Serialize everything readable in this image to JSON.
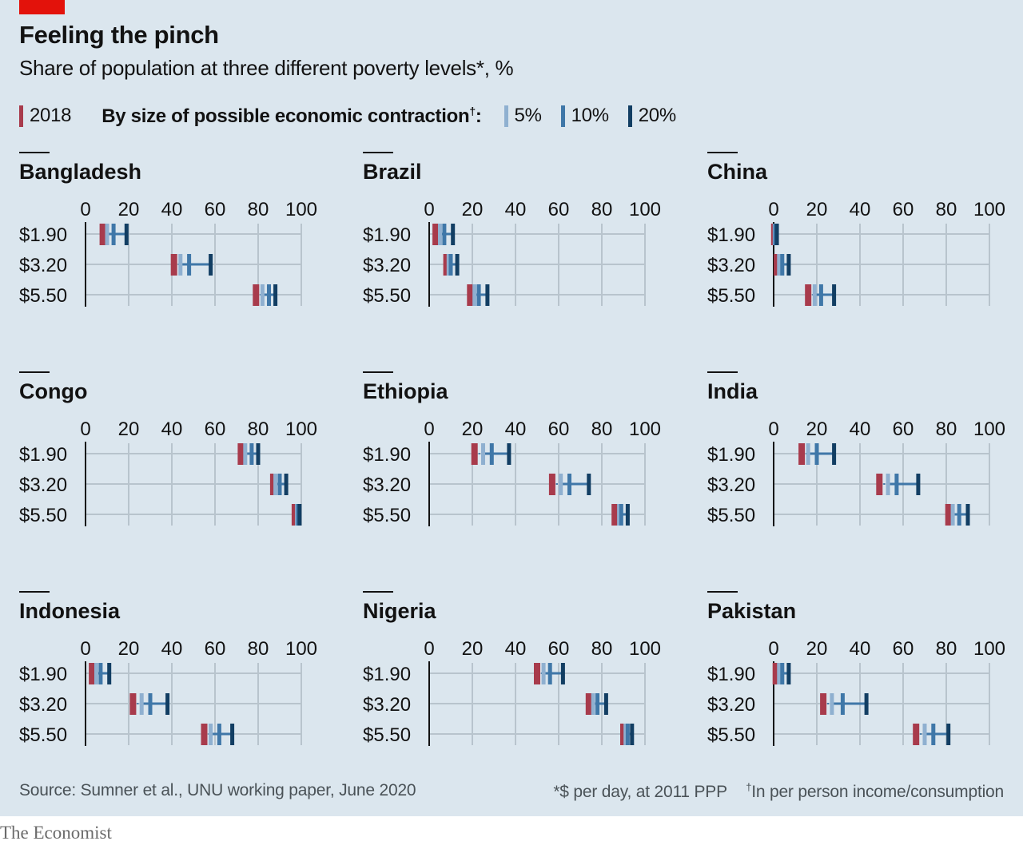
{
  "title": "Feeling the pinch",
  "subtitle": "Share of population at three different poverty levels*, %",
  "legend": {
    "baseline_label": "2018",
    "scenario_heading": "By size of possible economic contraction",
    "scenario_mark": "†",
    "scenario_labels": [
      "5%",
      "10%",
      "20%"
    ]
  },
  "colors": {
    "background": "#dbe6ee",
    "baseline": "#a83b4c",
    "scenario_5": "#8fb0d0",
    "scenario_10": "#3f77a8",
    "scenario_20": "#123e63",
    "gridline": "#b8c4cd",
    "axis": "#121212",
    "brand_red": "#e3120b"
  },
  "source": "Source: Sumner et al., UNU working paper, June 2020",
  "footnotes": {
    "poverty_line": "*$ per day, at 2011 PPP",
    "contraction_mark": "†",
    "contraction": "In per person income/consumption"
  },
  "brand": "The Economist",
  "chart_data": {
    "type": "bar",
    "xlim": [
      0,
      100
    ],
    "xticks": [
      "0",
      "20",
      "40",
      "60",
      "80",
      "100"
    ],
    "categories": [
      "$1.90",
      "$3.20",
      "$5.50"
    ],
    "series_keys": [
      "2018",
      "5%",
      "10%",
      "20%"
    ],
    "panels": [
      {
        "name": "Bangladesh",
        "values": [
          [
            8,
            10,
            13,
            19
          ],
          [
            41,
            44,
            48,
            58
          ],
          [
            79,
            82,
            85,
            88
          ]
        ]
      },
      {
        "name": "Brazil",
        "values": [
          [
            3,
            5,
            7,
            11
          ],
          [
            8,
            9,
            10,
            13
          ],
          [
            19,
            21,
            23,
            27
          ]
        ]
      },
      {
        "name": "China",
        "values": [
          [
            0.3,
            0.5,
            0.8,
            1.5
          ],
          [
            1.5,
            2.5,
            4,
            7
          ],
          [
            16,
            19,
            22,
            28
          ]
        ]
      },
      {
        "name": "Congo",
        "values": [
          [
            72,
            74,
            77,
            80
          ],
          [
            87,
            88,
            90,
            93
          ],
          [
            97,
            98,
            98.5,
            99.2
          ]
        ]
      },
      {
        "name": "Ethiopia",
        "values": [
          [
            21,
            25,
            29,
            37
          ],
          [
            57,
            61,
            65,
            74
          ],
          [
            86,
            88,
            89,
            92
          ]
        ]
      },
      {
        "name": "India",
        "values": [
          [
            13,
            16,
            20,
            28
          ],
          [
            49,
            53,
            57,
            67
          ],
          [
            81,
            83,
            86,
            90
          ]
        ]
      },
      {
        "name": "Indonesia",
        "values": [
          [
            3,
            5,
            7,
            11
          ],
          [
            22,
            26,
            30,
            38
          ],
          [
            55,
            58,
            62,
            68
          ]
        ]
      },
      {
        "name": "Nigeria",
        "values": [
          [
            50,
            53,
            56,
            62
          ],
          [
            74,
            76,
            78,
            82
          ],
          [
            90,
            91,
            92,
            94
          ]
        ]
      },
      {
        "name": "Pakistan",
        "values": [
          [
            1,
            2.5,
            4,
            7
          ],
          [
            23,
            27,
            32,
            43
          ],
          [
            66,
            70,
            74,
            81
          ]
        ]
      }
    ]
  }
}
